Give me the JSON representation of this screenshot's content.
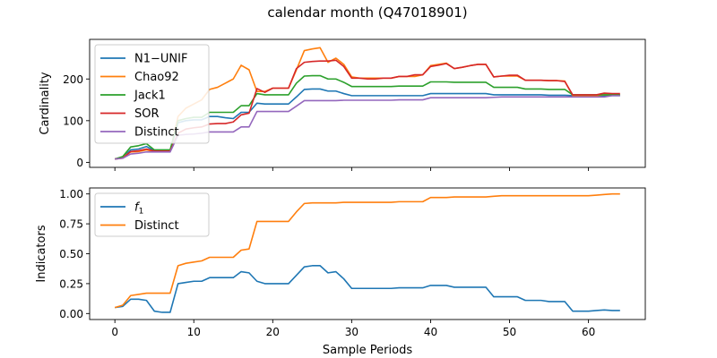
{
  "figure": {
    "title": "calendar month (Q47018901)"
  },
  "chart_data": [
    {
      "type": "line",
      "panel": "top",
      "title": "",
      "xlabel": "",
      "ylabel": "Cardinality",
      "xlim": [
        -3.2,
        67.2
      ],
      "ylim": [
        -12,
        295
      ],
      "yticks": [
        0,
        100,
        200
      ],
      "yticklabels": [
        "0",
        "100",
        "200"
      ],
      "xticks": [
        0,
        10,
        20,
        30,
        40,
        50,
        60
      ],
      "show_xticklabels": false,
      "grid": false,
      "legend_position": "upper-left",
      "series": [
        {
          "name": "N1−UNIF",
          "color": "#1f77b4",
          "x": [
            0,
            1,
            2,
            3,
            4,
            5,
            6,
            7,
            8,
            9,
            10,
            11,
            12,
            13,
            14,
            15,
            16,
            17,
            18,
            19,
            20,
            21,
            22,
            23,
            24,
            25,
            26,
            27,
            28,
            29,
            30,
            31,
            32,
            33,
            34,
            35,
            36,
            37,
            38,
            39,
            40,
            41,
            42,
            43,
            44,
            45,
            46,
            47,
            48,
            49,
            50,
            51,
            52,
            53,
            54,
            55,
            56,
            57,
            58,
            59,
            60,
            61,
            62,
            63,
            64
          ],
          "y": [
            8,
            12,
            30,
            32,
            38,
            28,
            28,
            28,
            95,
            100,
            102,
            102,
            110,
            110,
            107,
            105,
            120,
            120,
            142,
            140,
            140,
            140,
            140,
            157,
            175,
            176,
            176,
            171,
            171,
            165,
            160,
            160,
            160,
            160,
            160,
            160,
            160,
            160,
            160,
            160,
            165,
            165,
            165,
            165,
            165,
            165,
            165,
            165,
            162,
            162,
            162,
            162,
            162,
            162,
            162,
            161,
            161,
            161,
            160,
            160,
            160,
            160,
            160,
            160,
            160
          ]
        },
        {
          "name": "Chao92",
          "color": "#ff7f0e",
          "x": [
            0,
            1,
            2,
            3,
            4,
            5,
            6,
            7,
            8,
            9,
            10,
            11,
            12,
            13,
            14,
            15,
            16,
            17,
            18,
            19,
            20,
            21,
            22,
            23,
            24,
            25,
            26,
            27,
            28,
            29,
            30,
            31,
            32,
            33,
            34,
            35,
            36,
            37,
            38,
            39,
            40,
            41,
            42,
            43,
            44,
            45,
            46,
            47,
            48,
            49,
            50,
            51,
            52,
            53,
            54,
            55,
            56,
            57,
            58,
            59,
            60,
            61,
            62,
            63,
            64
          ],
          "y": [
            8,
            12,
            25,
            26,
            30,
            26,
            26,
            26,
            110,
            130,
            140,
            150,
            175,
            180,
            190,
            200,
            233,
            222,
            170,
            170,
            178,
            178,
            178,
            222,
            268,
            272,
            275,
            240,
            250,
            235,
            205,
            202,
            202,
            202,
            202,
            202,
            206,
            206,
            206,
            210,
            232,
            235,
            238,
            225,
            228,
            232,
            235,
            235,
            205,
            207,
            207,
            207,
            197,
            197,
            197,
            196,
            196,
            195,
            160,
            160,
            160,
            160,
            162,
            162,
            162
          ]
        },
        {
          "name": "Jack1",
          "color": "#2ca02c",
          "x": [
            0,
            1,
            2,
            3,
            4,
            5,
            6,
            7,
            8,
            9,
            10,
            11,
            12,
            13,
            14,
            15,
            16,
            17,
            18,
            19,
            20,
            21,
            22,
            23,
            24,
            25,
            26,
            27,
            28,
            29,
            30,
            31,
            32,
            33,
            34,
            35,
            36,
            37,
            38,
            39,
            40,
            41,
            42,
            43,
            44,
            45,
            46,
            47,
            48,
            49,
            50,
            51,
            52,
            53,
            54,
            55,
            56,
            57,
            58,
            59,
            60,
            61,
            62,
            63,
            64
          ],
          "y": [
            8,
            14,
            37,
            40,
            45,
            30,
            30,
            30,
            100,
            105,
            108,
            108,
            120,
            120,
            120,
            120,
            136,
            136,
            165,
            162,
            162,
            162,
            162,
            190,
            207,
            208,
            208,
            200,
            200,
            192,
            182,
            182,
            182,
            182,
            182,
            182,
            183,
            183,
            183,
            183,
            193,
            193,
            193,
            192,
            192,
            192,
            192,
            192,
            180,
            180,
            180,
            180,
            176,
            176,
            176,
            175,
            175,
            175,
            162,
            162,
            162,
            162,
            162,
            162,
            162
          ]
        },
        {
          "name": "SOR",
          "color": "#d62728",
          "x": [
            0,
            1,
            2,
            3,
            4,
            5,
            6,
            7,
            8,
            9,
            10,
            11,
            12,
            13,
            14,
            15,
            16,
            17,
            18,
            19,
            20,
            21,
            22,
            23,
            24,
            25,
            26,
            27,
            28,
            29,
            30,
            31,
            32,
            33,
            34,
            35,
            36,
            37,
            38,
            39,
            40,
            41,
            42,
            43,
            44,
            45,
            46,
            47,
            48,
            49,
            50,
            51,
            52,
            53,
            54,
            55,
            56,
            57,
            58,
            59,
            60,
            61,
            62,
            63,
            64
          ],
          "y": [
            8,
            10,
            26,
            28,
            32,
            27,
            27,
            27,
            70,
            80,
            83,
            85,
            92,
            93,
            93,
            97,
            114,
            118,
            177,
            168,
            178,
            178,
            178,
            225,
            240,
            242,
            243,
            243,
            245,
            230,
            202,
            202,
            200,
            200,
            202,
            202,
            206,
            206,
            210,
            210,
            230,
            233,
            237,
            225,
            228,
            232,
            235,
            235,
            205,
            207,
            209,
            209,
            197,
            197,
            197,
            196,
            196,
            194,
            162,
            162,
            162,
            162,
            166,
            165,
            165
          ]
        },
        {
          "name": "Distinct",
          "color": "#9467bd",
          "x": [
            0,
            1,
            2,
            3,
            4,
            5,
            6,
            7,
            8,
            9,
            10,
            11,
            12,
            13,
            14,
            15,
            16,
            17,
            18,
            19,
            20,
            21,
            22,
            23,
            24,
            25,
            26,
            27,
            28,
            29,
            30,
            31,
            32,
            33,
            34,
            35,
            36,
            37,
            38,
            39,
            40,
            41,
            42,
            43,
            44,
            45,
            46,
            47,
            48,
            49,
            50,
            51,
            52,
            53,
            54,
            55,
            56,
            57,
            58,
            59,
            60,
            61,
            62,
            63,
            64
          ],
          "y": [
            8,
            10,
            20,
            22,
            25,
            25,
            25,
            25,
            65,
            67,
            68,
            70,
            73,
            73,
            73,
            73,
            85,
            85,
            122,
            122,
            122,
            122,
            122,
            135,
            148,
            148,
            148,
            148,
            148,
            149,
            149,
            149,
            149,
            149,
            149,
            149,
            150,
            150,
            150,
            150,
            155,
            155,
            155,
            155,
            155,
            155,
            155,
            155,
            156,
            157,
            157,
            157,
            157,
            157,
            157,
            157,
            157,
            157,
            157,
            157,
            157,
            157,
            157,
            160,
            160
          ]
        }
      ]
    },
    {
      "type": "line",
      "panel": "bottom",
      "title": "",
      "xlabel": "Sample Periods",
      "ylabel": "Indicators",
      "xlim": [
        -3.2,
        67.2
      ],
      "ylim": [
        -0.05,
        1.05
      ],
      "yticks": [
        0,
        0.25,
        0.5,
        0.75,
        1
      ],
      "yticklabels": [
        "0.00",
        "0.25",
        "0.50",
        "0.75",
        "1.00"
      ],
      "xticks": [
        0,
        10,
        20,
        30,
        40,
        50,
        60
      ],
      "xticklabels": [
        "0",
        "10",
        "20",
        "30",
        "40",
        "50",
        "60"
      ],
      "show_xticklabels": true,
      "grid": false,
      "legend_position": "upper-left",
      "series": [
        {
          "name": "f₁",
          "name_main": "f",
          "name_sub": "1",
          "color": "#1f77b4",
          "x": [
            0,
            1,
            2,
            3,
            4,
            5,
            6,
            7,
            8,
            9,
            10,
            11,
            12,
            13,
            14,
            15,
            16,
            17,
            18,
            19,
            20,
            21,
            22,
            23,
            24,
            25,
            26,
            27,
            28,
            29,
            30,
            31,
            32,
            33,
            34,
            35,
            36,
            37,
            38,
            39,
            40,
            41,
            42,
            43,
            44,
            45,
            46,
            47,
            48,
            49,
            50,
            51,
            52,
            53,
            54,
            55,
            56,
            57,
            58,
            59,
            60,
            61,
            62,
            63,
            64
          ],
          "y": [
            0.05,
            0.06,
            0.12,
            0.12,
            0.11,
            0.02,
            0.01,
            0.01,
            0.25,
            0.26,
            0.27,
            0.27,
            0.3,
            0.3,
            0.3,
            0.3,
            0.35,
            0.34,
            0.27,
            0.25,
            0.25,
            0.25,
            0.25,
            0.32,
            0.39,
            0.4,
            0.4,
            0.34,
            0.35,
            0.29,
            0.21,
            0.21,
            0.21,
            0.21,
            0.21,
            0.21,
            0.215,
            0.215,
            0.215,
            0.215,
            0.235,
            0.235,
            0.235,
            0.22,
            0.22,
            0.22,
            0.22,
            0.22,
            0.14,
            0.14,
            0.14,
            0.14,
            0.11,
            0.11,
            0.11,
            0.1,
            0.1,
            0.1,
            0.02,
            0.02,
            0.02,
            0.025,
            0.03,
            0.025,
            0.025
          ]
        },
        {
          "name": "Distinct",
          "color": "#ff7f0e",
          "x": [
            0,
            1,
            2,
            3,
            4,
            5,
            6,
            7,
            8,
            9,
            10,
            11,
            12,
            13,
            14,
            15,
            16,
            17,
            18,
            19,
            20,
            21,
            22,
            23,
            24,
            25,
            26,
            27,
            28,
            29,
            30,
            31,
            32,
            33,
            34,
            35,
            36,
            37,
            38,
            39,
            40,
            41,
            42,
            43,
            44,
            45,
            46,
            47,
            48,
            49,
            50,
            51,
            52,
            53,
            54,
            55,
            56,
            57,
            58,
            59,
            60,
            61,
            62,
            63,
            64
          ],
          "y": [
            0.05,
            0.07,
            0.15,
            0.16,
            0.17,
            0.17,
            0.17,
            0.17,
            0.4,
            0.42,
            0.43,
            0.44,
            0.47,
            0.47,
            0.47,
            0.47,
            0.53,
            0.54,
            0.77,
            0.77,
            0.77,
            0.77,
            0.77,
            0.85,
            0.92,
            0.925,
            0.925,
            0.925,
            0.925,
            0.93,
            0.93,
            0.93,
            0.93,
            0.93,
            0.93,
            0.93,
            0.935,
            0.935,
            0.935,
            0.935,
            0.97,
            0.97,
            0.97,
            0.975,
            0.975,
            0.975,
            0.975,
            0.975,
            0.98,
            0.985,
            0.985,
            0.985,
            0.985,
            0.985,
            0.985,
            0.985,
            0.985,
            0.985,
            0.985,
            0.985,
            0.985,
            0.99,
            0.995,
            1.0,
            1.0
          ]
        }
      ]
    }
  ]
}
